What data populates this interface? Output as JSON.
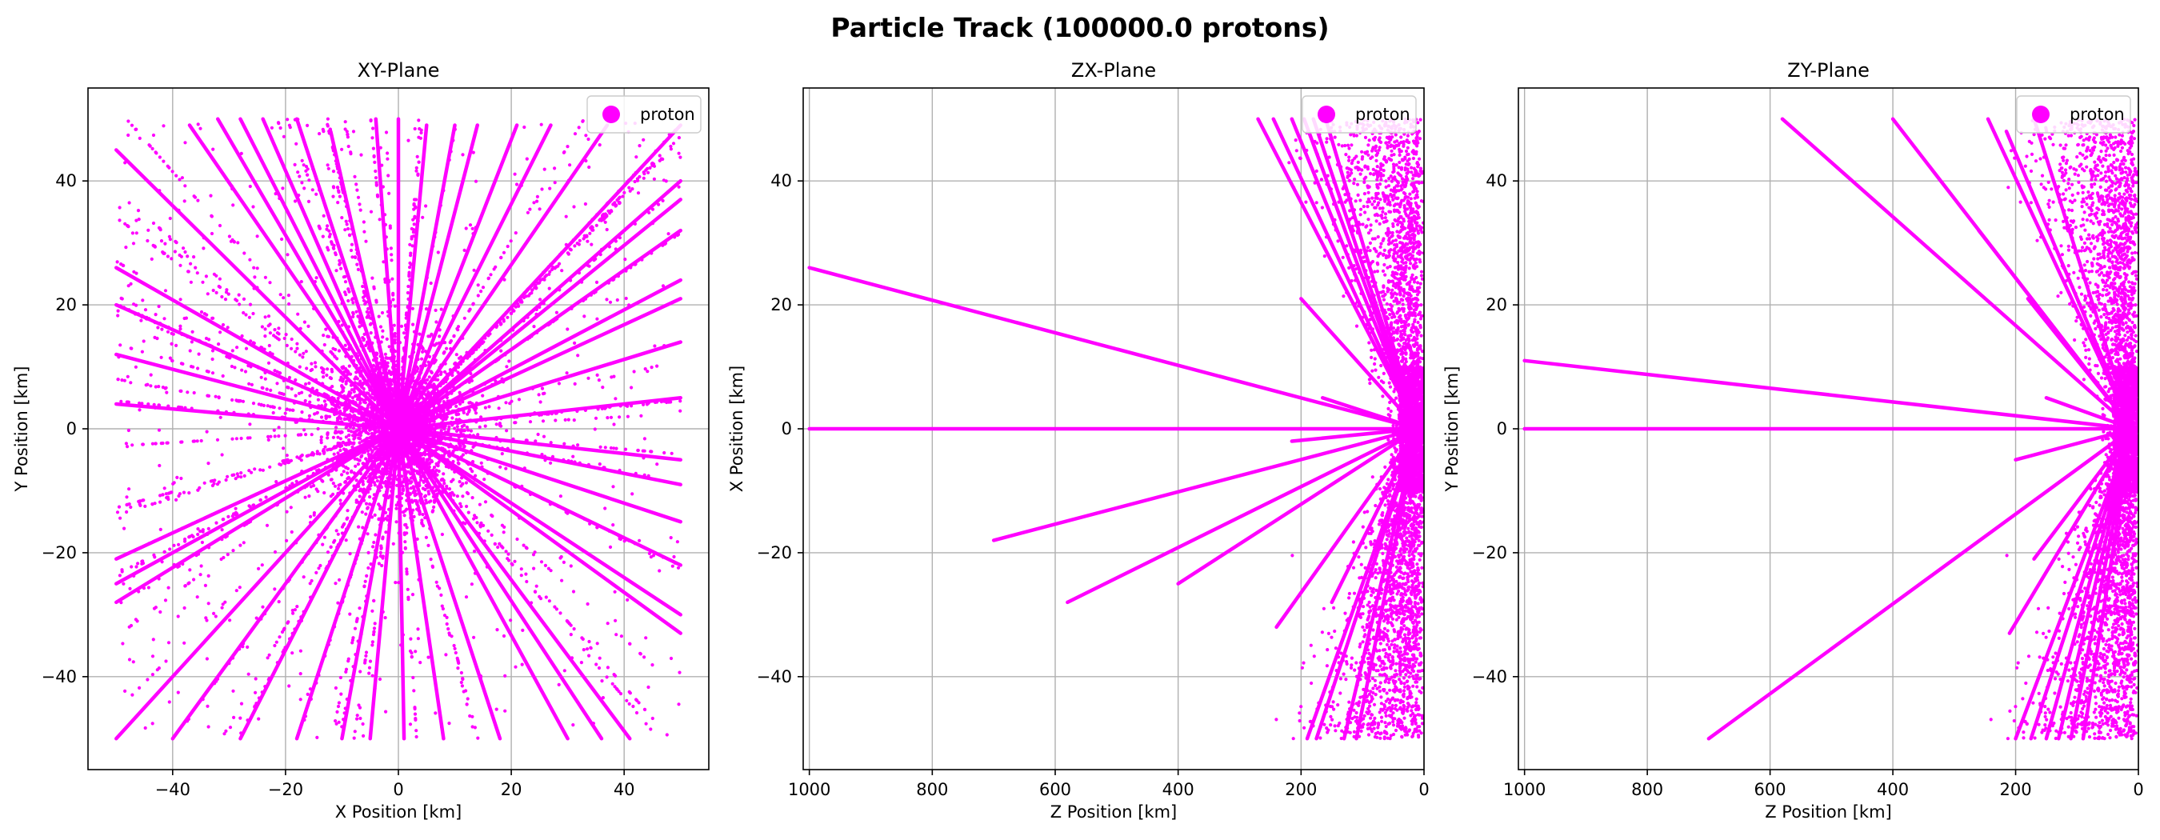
{
  "figure": {
    "title": "Particle Track (100000.0 protons)"
  },
  "colors": {
    "track": "#ff00ff",
    "grid": "#b0b0b0",
    "axes": "#000000",
    "background": "#ffffff"
  },
  "chart_data": [
    {
      "type": "scatter",
      "title": "XY-Plane",
      "xlabel": "X Position [km]",
      "ylabel": "Y Position [km]",
      "xlim": [
        -55,
        55
      ],
      "ylim": [
        -55,
        55
      ],
      "xticks": [
        -40,
        -20,
        0,
        20,
        40
      ],
      "yticks": [
        -40,
        -20,
        0,
        20,
        40
      ],
      "xtick_labels": [
        "−40",
        "−20",
        "0",
        "20",
        "40"
      ],
      "ytick_labels": [
        "−40",
        "−20",
        "0",
        "20",
        "40"
      ],
      "grid": true,
      "legend": {
        "entries": [
          "proton"
        ],
        "placement": "upper right"
      },
      "series": [
        {
          "name": "proton",
          "marker": "dot",
          "description_tracks": "rays from origin",
          "tracks": [
            {
              "x": [
                0,
                -50
              ],
              "y": [
                0,
                45
              ]
            },
            {
              "x": [
                0,
                -50
              ],
              "y": [
                0,
                26
              ]
            },
            {
              "x": [
                0,
                -50
              ],
              "y": [
                0,
                20
              ]
            },
            {
              "x": [
                0,
                -50
              ],
              "y": [
                0,
                12
              ]
            },
            {
              "x": [
                0,
                -50
              ],
              "y": [
                0,
                4
              ]
            },
            {
              "x": [
                0,
                -50
              ],
              "y": [
                0,
                -21
              ]
            },
            {
              "x": [
                0,
                -50
              ],
              "y": [
                0,
                -25
              ]
            },
            {
              "x": [
                0,
                -50
              ],
              "y": [
                0,
                -28
              ]
            },
            {
              "x": [
                0,
                -50
              ],
              "y": [
                0,
                -50
              ]
            },
            {
              "x": [
                0,
                -40
              ],
              "y": [
                0,
                -50
              ]
            },
            {
              "x": [
                0,
                -28
              ],
              "y": [
                0,
                -50
              ]
            },
            {
              "x": [
                0,
                -18
              ],
              "y": [
                0,
                -50
              ]
            },
            {
              "x": [
                0,
                -10
              ],
              "y": [
                0,
                -50
              ]
            },
            {
              "x": [
                0,
                -5
              ],
              "y": [
                0,
                -50
              ]
            },
            {
              "x": [
                0,
                1
              ],
              "y": [
                0,
                -50
              ]
            },
            {
              "x": [
                0,
                8
              ],
              "y": [
                0,
                -50
              ]
            },
            {
              "x": [
                0,
                18
              ],
              "y": [
                0,
                -50
              ]
            },
            {
              "x": [
                0,
                30
              ],
              "y": [
                0,
                -50
              ]
            },
            {
              "x": [
                0,
                36
              ],
              "y": [
                0,
                -50
              ]
            },
            {
              "x": [
                0,
                41
              ],
              "y": [
                0,
                -50
              ]
            },
            {
              "x": [
                0,
                50
              ],
              "y": [
                0,
                -33
              ]
            },
            {
              "x": [
                0,
                50
              ],
              "y": [
                0,
                -30
              ]
            },
            {
              "x": [
                0,
                50
              ],
              "y": [
                0,
                -22
              ]
            },
            {
              "x": [
                0,
                50
              ],
              "y": [
                0,
                -15
              ]
            },
            {
              "x": [
                0,
                50
              ],
              "y": [
                0,
                -9
              ]
            },
            {
              "x": [
                0,
                50
              ],
              "y": [
                0,
                -5
              ]
            },
            {
              "x": [
                0,
                50
              ],
              "y": [
                0,
                5
              ]
            },
            {
              "x": [
                0,
                50
              ],
              "y": [
                0,
                14
              ]
            },
            {
              "x": [
                0,
                50
              ],
              "y": [
                0,
                21
              ]
            },
            {
              "x": [
                0,
                50
              ],
              "y": [
                0,
                24
              ]
            },
            {
              "x": [
                0,
                50
              ],
              "y": [
                0,
                32
              ]
            },
            {
              "x": [
                0,
                50
              ],
              "y": [
                0,
                37
              ]
            },
            {
              "x": [
                0,
                50
              ],
              "y": [
                0,
                40
              ]
            },
            {
              "x": [
                0,
                50
              ],
              "y": [
                0,
                49
              ]
            },
            {
              "x": [
                0,
                37
              ],
              "y": [
                0,
                49
              ]
            },
            {
              "x": [
                0,
                27
              ],
              "y": [
                0,
                49
              ]
            },
            {
              "x": [
                0,
                21
              ],
              "y": [
                0,
                49
              ]
            },
            {
              "x": [
                0,
                14
              ],
              "y": [
                0,
                49
              ]
            },
            {
              "x": [
                0,
                10
              ],
              "y": [
                0,
                49
              ]
            },
            {
              "x": [
                0,
                5
              ],
              "y": [
                0,
                49
              ]
            },
            {
              "x": [
                0,
                0
              ],
              "y": [
                0,
                50
              ]
            },
            {
              "x": [
                0,
                -4
              ],
              "y": [
                0,
                50
              ]
            },
            {
              "x": [
                0,
                -12
              ],
              "y": [
                0,
                48
              ]
            },
            {
              "x": [
                0,
                -18
              ],
              "y": [
                0,
                50
              ]
            },
            {
              "x": [
                0,
                -24
              ],
              "y": [
                0,
                50
              ]
            },
            {
              "x": [
                0,
                -28
              ],
              "y": [
                0,
                50
              ]
            },
            {
              "x": [
                0,
                -32
              ],
              "y": [
                0,
                50
              ]
            },
            {
              "x": [
                0,
                -37
              ],
              "y": [
                0,
                49
              ]
            }
          ]
        }
      ]
    },
    {
      "type": "scatter",
      "title": "ZX-Plane",
      "xlabel": "Z Position [km]",
      "ylabel": "X Position [km]",
      "xlim": [
        1010,
        0
      ],
      "ylim": [
        -55,
        55
      ],
      "xticks": [
        1000,
        800,
        600,
        400,
        200,
        0
      ],
      "yticks": [
        -40,
        -20,
        0,
        20,
        40
      ],
      "xtick_labels": [
        "1000",
        "800",
        "600",
        "400",
        "200",
        "0"
      ],
      "ytick_labels": [
        "−40",
        "−20",
        "0",
        "20",
        "40"
      ],
      "grid": true,
      "legend": {
        "entries": [
          "proton"
        ],
        "placement": "upper right"
      },
      "series": [
        {
          "name": "proton",
          "marker": "dot",
          "tracks": [
            {
              "x": [
                10,
                1000
              ],
              "y": [
                0,
                26
              ]
            },
            {
              "x": [
                10,
                1000
              ],
              "y": [
                0,
                0
              ]
            },
            {
              "x": [
                10,
                700
              ],
              "y": [
                0,
                -18
              ]
            },
            {
              "x": [
                10,
                580
              ],
              "y": [
                0,
                -28
              ]
            },
            {
              "x": [
                10,
                400
              ],
              "y": [
                0,
                -25
              ]
            },
            {
              "x": [
                10,
                240
              ],
              "y": [
                0,
                -32
              ]
            },
            {
              "x": [
                10,
                270
              ],
              "y": [
                0,
                50
              ]
            },
            {
              "x": [
                10,
                245
              ],
              "y": [
                0,
                50
              ]
            },
            {
              "x": [
                10,
                215
              ],
              "y": [
                0,
                50
              ]
            },
            {
              "x": [
                10,
                195
              ],
              "y": [
                0,
                50
              ]
            },
            {
              "x": [
                10,
                180
              ],
              "y": [
                0,
                50
              ]
            },
            {
              "x": [
                10,
                160
              ],
              "y": [
                0,
                50
              ]
            },
            {
              "x": [
                10,
                200
              ],
              "y": [
                0,
                21
              ]
            },
            {
              "x": [
                10,
                165
              ],
              "y": [
                0,
                5
              ]
            },
            {
              "x": [
                10,
                215
              ],
              "y": [
                0,
                -2
              ]
            },
            {
              "x": [
                10,
                190
              ],
              "y": [
                0,
                -50
              ]
            },
            {
              "x": [
                10,
                175
              ],
              "y": [
                0,
                -50
              ]
            },
            {
              "x": [
                10,
                150
              ],
              "y": [
                0,
                -28
              ]
            },
            {
              "x": [
                10,
                130
              ],
              "y": [
                0,
                -50
              ]
            },
            {
              "x": [
                10,
                110
              ],
              "y": [
                0,
                -50
              ]
            }
          ]
        }
      ]
    },
    {
      "type": "scatter",
      "title": "ZY-Plane",
      "xlabel": "Z Position [km]",
      "ylabel": "Y Position [km]",
      "xlim": [
        1010,
        0
      ],
      "ylim": [
        -55,
        55
      ],
      "xticks": [
        1000,
        800,
        600,
        400,
        200,
        0
      ],
      "yticks": [
        -40,
        -20,
        0,
        20,
        40
      ],
      "xtick_labels": [
        "1000",
        "800",
        "600",
        "400",
        "200",
        "0"
      ],
      "ytick_labels": [
        "−40",
        "−20",
        "0",
        "20",
        "40"
      ],
      "grid": true,
      "legend": {
        "entries": [
          "proton"
        ],
        "placement": "upper right"
      },
      "series": [
        {
          "name": "proton",
          "marker": "dot",
          "tracks": [
            {
              "x": [
                10,
                1000
              ],
              "y": [
                0,
                11
              ]
            },
            {
              "x": [
                10,
                1000
              ],
              "y": [
                0,
                0
              ]
            },
            {
              "x": [
                10,
                700
              ],
              "y": [
                0,
                -50
              ]
            },
            {
              "x": [
                10,
                580
              ],
              "y": [
                0,
                50
              ]
            },
            {
              "x": [
                10,
                400
              ],
              "y": [
                0,
                50
              ]
            },
            {
              "x": [
                10,
                245
              ],
              "y": [
                0,
                50
              ]
            },
            {
              "x": [
                10,
                215
              ],
              "y": [
                0,
                48
              ]
            },
            {
              "x": [
                10,
                170
              ],
              "y": [
                0,
                50
              ]
            },
            {
              "x": [
                10,
                260
              ],
              "y": [
                0,
                32
              ]
            },
            {
              "x": [
                10,
                180
              ],
              "y": [
                0,
                21
              ]
            },
            {
              "x": [
                10,
                150
              ],
              "y": [
                0,
                5
              ]
            },
            {
              "x": [
                10,
                200
              ],
              "y": [
                0,
                -5
              ]
            },
            {
              "x": [
                10,
                170
              ],
              "y": [
                0,
                -21
              ]
            },
            {
              "x": [
                10,
                210
              ],
              "y": [
                0,
                -33
              ]
            },
            {
              "x": [
                10,
                200
              ],
              "y": [
                0,
                -50
              ]
            },
            {
              "x": [
                10,
                175
              ],
              "y": [
                0,
                -50
              ]
            },
            {
              "x": [
                10,
                150
              ],
              "y": [
                0,
                -50
              ]
            },
            {
              "x": [
                10,
                130
              ],
              "y": [
                0,
                -50
              ]
            },
            {
              "x": [
                10,
                110
              ],
              "y": [
                0,
                -50
              ]
            },
            {
              "x": [
                10,
                90
              ],
              "y": [
                0,
                -50
              ]
            }
          ]
        }
      ]
    }
  ]
}
